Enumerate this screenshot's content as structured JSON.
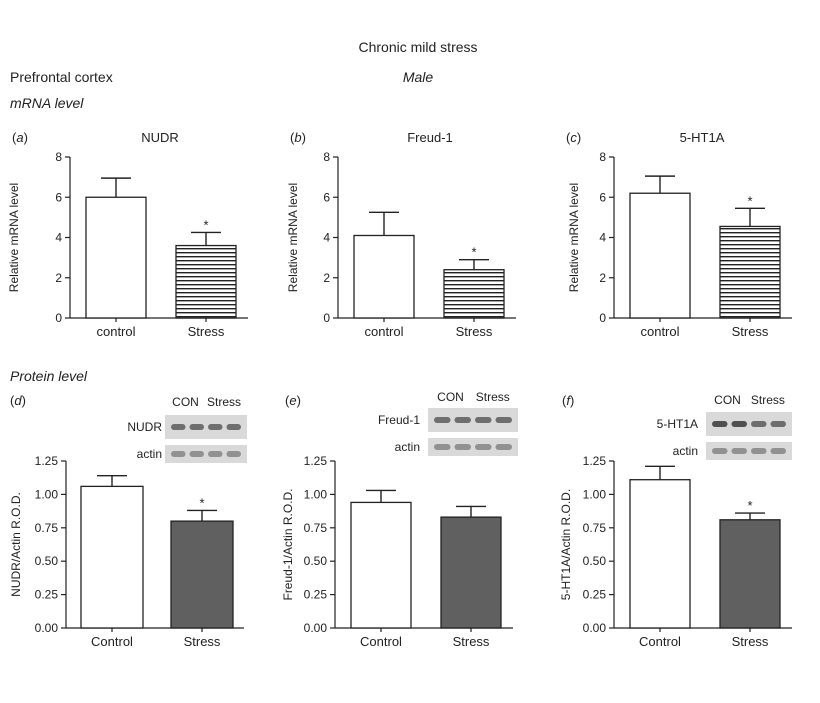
{
  "figure": {
    "title": "Chronic mild stress",
    "region": "Prefrontal cortex",
    "sex": "Male",
    "mrna_heading": "mRNA level",
    "protein_heading": "Protein level"
  },
  "colors": {
    "axis": "#222222",
    "stress_fill": "#606060",
    "control_fill": "#ffffff",
    "blot_band": "#4a4a4a",
    "blot_bg": "#d9d9d9"
  },
  "chart_data": [
    {
      "type": "bar",
      "panel": "a",
      "title": "NUDR",
      "ylabel": "Relative mRNA level",
      "ylim": [
        0,
        8
      ],
      "yticks": [
        "0",
        "2",
        "4",
        "6",
        "8"
      ],
      "categories": [
        "control",
        "Stress"
      ],
      "values": [
        6.0,
        3.6
      ],
      "errors": [
        0.95,
        0.65
      ],
      "significance": [
        "",
        "*"
      ],
      "fills": [
        "white",
        "hatched"
      ]
    },
    {
      "type": "bar",
      "panel": "b",
      "title": "Freud-1",
      "ylabel": "Relative mRNA level",
      "ylim": [
        0,
        8
      ],
      "yticks": [
        "0",
        "2",
        "4",
        "6",
        "8"
      ],
      "categories": [
        "control",
        "Stress"
      ],
      "values": [
        4.1,
        2.4
      ],
      "errors": [
        1.15,
        0.5
      ],
      "significance": [
        "",
        "*"
      ],
      "fills": [
        "white",
        "hatched"
      ]
    },
    {
      "type": "bar",
      "panel": "c",
      "title": "5-HT1A",
      "ylabel": "Relative mRNA level",
      "ylim": [
        0,
        8
      ],
      "yticks": [
        "0",
        "2",
        "4",
        "6",
        "8"
      ],
      "categories": [
        "control",
        "Stress"
      ],
      "values": [
        6.2,
        4.55
      ],
      "errors": [
        0.85,
        0.9
      ],
      "significance": [
        "",
        "*"
      ],
      "fills": [
        "white",
        "hatched"
      ]
    },
    {
      "type": "bar",
      "panel": "d",
      "ylabel": "NUDR/Actin R.O.D.",
      "ylim": [
        0,
        1.25
      ],
      "yticks": [
        "0.00",
        "0.25",
        "0.50",
        "0.75",
        "1.00",
        "1.25"
      ],
      "categories": [
        "Control",
        "Stress"
      ],
      "values": [
        1.06,
        0.8
      ],
      "errors": [
        0.08,
        0.08
      ],
      "significance": [
        "",
        "*"
      ],
      "fills": [
        "white",
        "gray"
      ],
      "blot": {
        "lanes": [
          "CON",
          "Stress"
        ],
        "rows": [
          "NUDR",
          "actin"
        ]
      }
    },
    {
      "type": "bar",
      "panel": "e",
      "ylabel": "Freud-1/Actin R.O.D.",
      "ylim": [
        0,
        1.25
      ],
      "yticks": [
        "0.00",
        "0.25",
        "0.50",
        "0.75",
        "1.00",
        "1.25"
      ],
      "categories": [
        "Control",
        "Stress"
      ],
      "values": [
        0.94,
        0.83
      ],
      "errors": [
        0.09,
        0.08
      ],
      "significance": [
        "",
        ""
      ],
      "fills": [
        "white",
        "gray"
      ],
      "blot": {
        "lanes": [
          "CON",
          "Stress"
        ],
        "rows": [
          "Freud-1",
          "actin"
        ]
      }
    },
    {
      "type": "bar",
      "panel": "f",
      "ylabel": "5-HT1A/Actin R.O.D.",
      "ylim": [
        0,
        1.25
      ],
      "yticks": [
        "0.00",
        "0.25",
        "0.50",
        "0.75",
        "1.00",
        "1.25"
      ],
      "categories": [
        "Control",
        "Stress"
      ],
      "values": [
        1.11,
        0.81
      ],
      "errors": [
        0.1,
        0.05
      ],
      "significance": [
        "",
        "*"
      ],
      "fills": [
        "white",
        "gray"
      ],
      "blot": {
        "lanes": [
          "CON",
          "Stress"
        ],
        "rows": [
          "5-HT1A",
          "actin"
        ]
      }
    }
  ]
}
